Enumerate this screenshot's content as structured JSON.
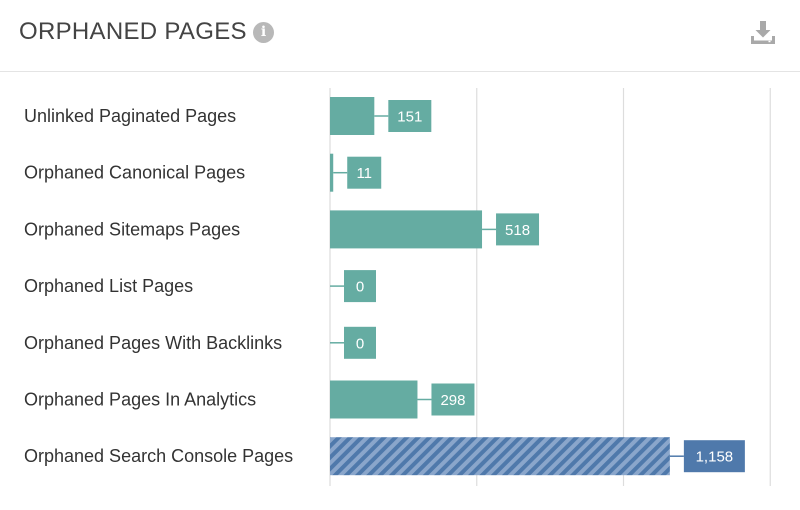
{
  "header": {
    "title": "ORPHANED PAGES",
    "info_icon": "info-icon",
    "download_icon": "download-icon"
  },
  "colors": {
    "bar": "#65aca2",
    "highlight": "#4f79ab",
    "gridline": "#dddddd"
  },
  "chart_data": {
    "type": "bar",
    "orientation": "horizontal",
    "title": "ORPHANED PAGES",
    "categories": [
      "Unlinked Paginated Pages",
      "Orphaned Canonical Pages",
      "Orphaned Sitemaps Pages",
      "Orphaned List Pages",
      "Orphaned Pages With Backlinks",
      "Orphaned Pages In Analytics",
      "Orphaned Search Console Pages"
    ],
    "values": [
      151,
      11,
      518,
      0,
      0,
      298,
      1158
    ],
    "value_labels": [
      "151",
      "11",
      "518",
      "0",
      "0",
      "298",
      "1,158"
    ],
    "highlighted": [
      false,
      false,
      false,
      false,
      false,
      false,
      true
    ],
    "xlim": [
      0,
      1500
    ],
    "grid": true,
    "legend": "none"
  }
}
